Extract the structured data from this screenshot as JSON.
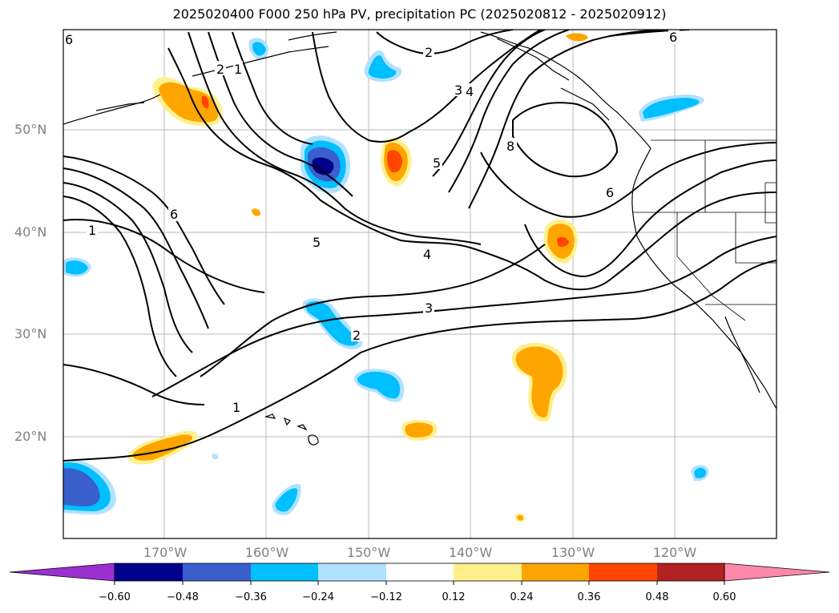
{
  "title": "2025020400 F000 250 hPa PV, precipitation PC (2025020812 - 2025020912)",
  "map": {
    "lat_labels": [
      "50°N",
      "40°N",
      "30°N",
      "20°N"
    ],
    "lon_labels": [
      "170°W",
      "160°W",
      "150°W",
      "140°W",
      "130°W",
      "120°W"
    ],
    "contour_labels": [
      "6",
      "2",
      "1",
      "2",
      "3",
      "4",
      "6",
      "8",
      "5",
      "6",
      "1",
      "5",
      "4",
      "3",
      "2",
      "1",
      "6"
    ]
  },
  "colorbar": {
    "ticks": [
      "−0.60",
      "−0.48",
      "−0.36",
      "−0.24",
      "−0.12",
      "0.12",
      "0.24",
      "0.36",
      "0.48",
      "0.60"
    ],
    "colors": [
      "#9b30d0",
      "#00008b",
      "#3a5fcd",
      "#00bfff",
      "#b0e2ff",
      "#ffffff",
      "#fff08c",
      "#ffa500",
      "#ff4500",
      "#b22222",
      "#ff88aa"
    ]
  }
}
